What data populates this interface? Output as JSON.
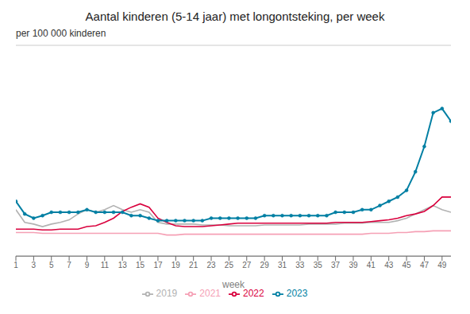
{
  "chart_data": {
    "type": "line",
    "title": "Aantal kinderen (5-14 jaar) met longontsteking, per week",
    "ylabel": "per 100 000 kinderen",
    "xlabel": "week",
    "x": [
      1,
      2,
      3,
      4,
      5,
      6,
      7,
      8,
      9,
      10,
      11,
      12,
      13,
      14,
      15,
      16,
      17,
      18,
      19,
      20,
      21,
      22,
      23,
      24,
      25,
      26,
      27,
      28,
      29,
      30,
      31,
      32,
      33,
      34,
      35,
      36,
      37,
      38,
      39,
      40,
      41,
      42,
      43,
      44,
      45,
      46,
      47,
      48,
      49,
      50
    ],
    "series": [
      {
        "name": "2019",
        "color": "#b2b2b2",
        "values": [
          5.5,
          4.0,
          3.8,
          3.5,
          3.8,
          4.0,
          4.3,
          5.0,
          5.5,
          5.2,
          5.5,
          6.0,
          5.5,
          5.2,
          5.5,
          5.2,
          4.0,
          3.8,
          3.8,
          3.8,
          3.8,
          3.7,
          3.7,
          3.7,
          3.6,
          3.6,
          3.6,
          3.6,
          3.7,
          3.7,
          3.7,
          3.7,
          3.7,
          3.8,
          3.8,
          3.8,
          3.8,
          3.9,
          3.9,
          3.9,
          4.0,
          4.0,
          4.0,
          4.2,
          4.5,
          5.0,
          5.5,
          6.0,
          5.5,
          5.2
        ]
      },
      {
        "name": "2021",
        "color": "#f5a0b5",
        "values": [
          2.8,
          2.8,
          2.8,
          2.7,
          2.7,
          2.7,
          2.7,
          2.7,
          2.7,
          2.7,
          2.7,
          2.7,
          2.7,
          2.7,
          2.7,
          2.7,
          2.7,
          2.5,
          2.5,
          2.6,
          2.6,
          2.6,
          2.6,
          2.6,
          2.6,
          2.6,
          2.6,
          2.6,
          2.6,
          2.6,
          2.6,
          2.6,
          2.6,
          2.6,
          2.6,
          2.6,
          2.6,
          2.6,
          2.6,
          2.6,
          2.7,
          2.7,
          2.7,
          2.8,
          2.8,
          2.9,
          2.9,
          3.0,
          3.0,
          3.0
        ]
      },
      {
        "name": "2022",
        "color": "#d9003d",
        "values": [
          3.2,
          3.2,
          3.2,
          3.1,
          3.1,
          3.2,
          3.2,
          3.2,
          3.5,
          3.6,
          4.0,
          4.5,
          5.3,
          5.8,
          6.2,
          5.8,
          4.5,
          4.0,
          3.6,
          3.5,
          3.5,
          3.5,
          3.6,
          3.7,
          3.8,
          3.9,
          3.9,
          3.9,
          3.9,
          3.9,
          3.9,
          3.9,
          3.9,
          3.9,
          3.9,
          3.9,
          4.0,
          4.0,
          4.0,
          4.0,
          4.1,
          4.2,
          4.3,
          4.5,
          4.8,
          5.0,
          5.3,
          6.0,
          7.0,
          7.0
        ]
      },
      {
        "name": "2023",
        "color": "#007fa3",
        "marker": "circle",
        "values": [
          6.5,
          5.0,
          4.5,
          4.8,
          5.2,
          5.2,
          5.2,
          5.2,
          5.5,
          5.2,
          5.2,
          5.2,
          5.2,
          4.8,
          4.8,
          4.5,
          4.2,
          4.2,
          4.2,
          4.2,
          4.2,
          4.2,
          4.5,
          4.5,
          4.5,
          4.5,
          4.5,
          4.5,
          4.8,
          4.8,
          4.8,
          4.8,
          4.8,
          4.8,
          4.8,
          4.8,
          5.2,
          5.2,
          5.2,
          5.5,
          5.5,
          6.0,
          6.5,
          7.0,
          7.8,
          10.0,
          13.0,
          17.0,
          17.5,
          16.0
        ]
      }
    ],
    "xlim": [
      1,
      50
    ],
    "xticks": [
      1,
      3,
      5,
      7,
      9,
      11,
      13,
      15,
      17,
      19,
      21,
      23,
      25,
      27,
      29,
      31,
      33,
      35,
      37,
      39,
      41,
      43,
      45,
      47,
      49
    ],
    "ylim": [
      0,
      25
    ],
    "yticks": [
      5,
      10,
      15,
      20,
      25
    ],
    "grid": true,
    "legend": "bottom",
    "tick_labels": "x"
  }
}
